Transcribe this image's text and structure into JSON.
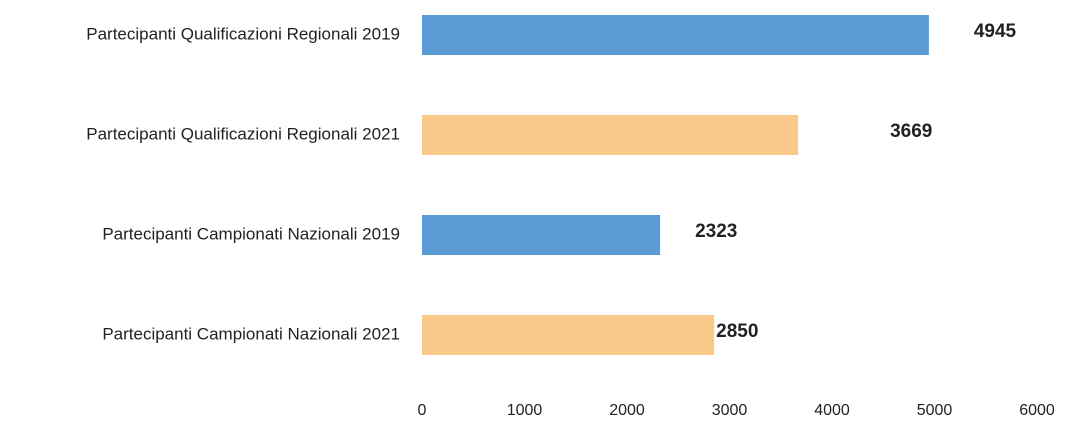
{
  "chart_data": {
    "type": "bar",
    "orientation": "horizontal",
    "categories": [
      "Partecipanti Qualificazioni Regionali 2019",
      "Partecipanti Qualificazioni Regionali 2021",
      "Partecipanti Campionati Nazionali 2019",
      "Partecipanti Campionati Nazionali 2021"
    ],
    "values": [
      4945,
      3669,
      2323,
      2850
    ],
    "colors": [
      "#5b9bd5",
      "#f8c98a",
      "#5b9bd5",
      "#f8c98a"
    ],
    "xlim": [
      0,
      6000
    ],
    "xticks": [
      0,
      1000,
      2000,
      3000,
      4000,
      5000,
      6000
    ],
    "grid": false
  }
}
